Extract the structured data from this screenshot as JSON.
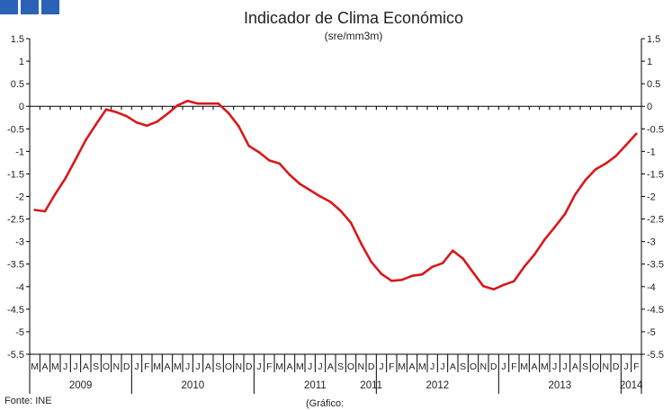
{
  "header": {
    "title": "Indicador de Clima Económico",
    "subtitle": "(sre/mm3m)"
  },
  "footer": {
    "source": "Fonte: INE",
    "graph_label": "(Gráfico:"
  },
  "colors": {
    "series": "#d7191c",
    "brand_squares": "#2a63b5",
    "axis": "#000000",
    "text": "#222222"
  },
  "chart_data": {
    "type": "line",
    "title": "Indicador de Clima Económico",
    "subtitle": "(sre/mm3m)",
    "ylim": [
      -5.5,
      1.5
    ],
    "yticks": [
      1.5,
      1,
      0.5,
      0,
      -0.5,
      -1,
      -1.5,
      -2,
      -2.5,
      -3,
      -3.5,
      -4,
      -4.5,
      -5,
      -5.5
    ],
    "ytick_labels": [
      "1.5",
      "1",
      "0.5",
      "0",
      "-0.5",
      "-1",
      "-1.5",
      "-2",
      "-2.5",
      "-3",
      "-3.5",
      "-4",
      "-4.5",
      "-5",
      "-5.5"
    ],
    "grid": false,
    "x": [
      "2009-03",
      "2009-04",
      "2009-05",
      "2009-06",
      "2009-07",
      "2009-08",
      "2009-09",
      "2009-10",
      "2009-11",
      "2009-12",
      "2010-01",
      "2010-02",
      "2010-03",
      "2010-04",
      "2010-05",
      "2010-06",
      "2010-07",
      "2010-08",
      "2010-09",
      "2010-10",
      "2010-11",
      "2010-12",
      "2011-01",
      "2011-02",
      "2011-03",
      "2011-04",
      "2011-05",
      "2011-06",
      "2011-07",
      "2011-08",
      "2011-09",
      "2011-10",
      "2011-11",
      "2011-12",
      "2012-01",
      "2012-02",
      "2012-03",
      "2012-04",
      "2012-05",
      "2012-06",
      "2012-07",
      "2012-08",
      "2012-09",
      "2012-10",
      "2012-11",
      "2012-12",
      "2013-01",
      "2013-02",
      "2013-03",
      "2013-04",
      "2013-05",
      "2013-06",
      "2013-07",
      "2013-08",
      "2013-09",
      "2013-10",
      "2013-11",
      "2013-12",
      "2014-01",
      "2014-02"
    ],
    "month_labels": [
      "M",
      "A",
      "M",
      "J",
      "J",
      "A",
      "S",
      "O",
      "N",
      "D",
      "J",
      "F",
      "M",
      "A",
      "M",
      "J",
      "J",
      "A",
      "S",
      "O",
      "N",
      "D",
      "J",
      "F",
      "M",
      "A",
      "M",
      "J",
      "J",
      "A",
      "S",
      "O",
      "N",
      "D",
      "J",
      "F",
      "M",
      "A",
      "M",
      "J",
      "J",
      "A",
      "S",
      "O",
      "N",
      "D",
      "J",
      "F",
      "M",
      "A",
      "M",
      "J",
      "J",
      "A",
      "S",
      "O",
      "N",
      "D",
      "J",
      "F"
    ],
    "year_labels": [
      {
        "label": "2009",
        "start": 0,
        "end": 9
      },
      {
        "label": "2010",
        "start": 10,
        "end": 21
      },
      {
        "label": "2011",
        "start": 22,
        "end": 33
      },
      {
        "label": "2011",
        "start": 33,
        "end": 33
      },
      {
        "label": "2012",
        "start": 34,
        "end": 45
      },
      {
        "label": "2013",
        "start": 46,
        "end": 57
      },
      {
        "label": "2014",
        "start": 58,
        "end": 59
      }
    ],
    "series": [
      {
        "values": [
          -2.3,
          -2.33,
          -1.95,
          -1.6,
          -1.18,
          -0.75,
          -0.4,
          -0.07,
          -0.13,
          -0.22,
          -0.36,
          -0.43,
          -0.34,
          -0.17,
          0.02,
          0.12,
          0.06,
          0.06,
          0.06,
          -0.15,
          -0.44,
          -0.88,
          -1.02,
          -1.2,
          -1.27,
          -1.52,
          -1.72,
          -1.86,
          -2.0,
          -2.12,
          -2.32,
          -2.58,
          -3.04,
          -3.45,
          -3.72,
          -3.87,
          -3.85,
          -3.76,
          -3.73,
          -3.56,
          -3.48,
          -3.2,
          -3.38,
          -3.69,
          -3.99,
          -4.06,
          -3.96,
          -3.88,
          -3.56,
          -3.29,
          -2.96,
          -2.68,
          -2.39,
          -1.96,
          -1.64,
          -1.4,
          -1.27,
          -1.1,
          -0.86,
          -0.61
        ]
      }
    ]
  }
}
